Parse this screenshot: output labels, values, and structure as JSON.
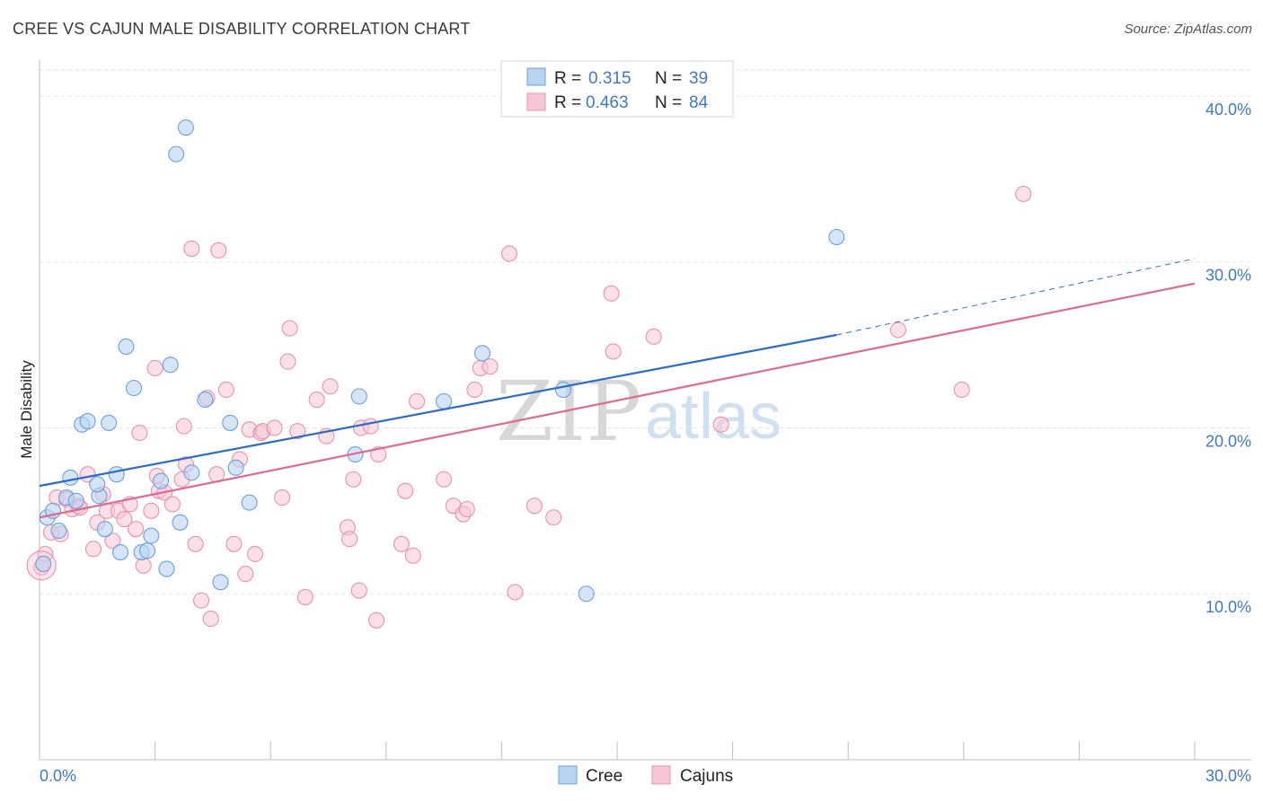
{
  "title": "CREE VS CAJUN MALE DISABILITY CORRELATION CHART",
  "source": "Source: ZipAtlas.com",
  "watermark": {
    "zip": "ZIP",
    "atlas": "atlas"
  },
  "legend": {
    "r_label": "R =",
    "n_label": "N =",
    "rows": [
      {
        "r": "0.315",
        "n": "39"
      },
      {
        "r": "0.463",
        "n": "84"
      }
    ]
  },
  "colors": {
    "cree_fill": "#b9d3f2",
    "cree_stroke": "#6b9fdc",
    "cree_line": "#2b6cc8",
    "cajun_fill": "#f7c6d6",
    "cajun_stroke": "#e891ad",
    "cajun_line": "#e0698f",
    "tick": "#3f78c8"
  },
  "chart_data": {
    "type": "scatter",
    "title": "CREE VS CAJUN MALE DISABILITY CORRELATION CHART",
    "xlabel": "",
    "ylabel": "Male Disability",
    "xlim": [
      0,
      30
    ],
    "ylim": [
      0,
      42
    ],
    "x_tick_labels": [
      "0.0%",
      "30.0%"
    ],
    "y_ticks": [
      10,
      20,
      30,
      40
    ],
    "y_tick_labels": [
      "10.0%",
      "20.0%",
      "30.0%",
      "40.0%"
    ],
    "grid": true,
    "legend_position": "top-center",
    "series": [
      {
        "name": "Cree",
        "r": 0.315,
        "n": 39,
        "trend": {
          "x0": 0,
          "y0": 16.5,
          "x1": 20.7,
          "y1": 25.6,
          "dashed_to_x": 30,
          "dashed_to_y": 30.2
        },
        "points": [
          [
            0.1,
            11.8
          ],
          [
            0.2,
            14.6
          ],
          [
            0.35,
            15.0
          ],
          [
            0.5,
            13.8
          ],
          [
            0.7,
            15.8
          ],
          [
            0.8,
            17.0
          ],
          [
            0.95,
            15.6
          ],
          [
            1.1,
            20.2
          ],
          [
            1.25,
            20.4
          ],
          [
            1.55,
            15.9
          ],
          [
            1.5,
            16.6
          ],
          [
            1.7,
            13.9
          ],
          [
            1.8,
            20.3
          ],
          [
            2.0,
            17.2
          ],
          [
            2.1,
            12.5
          ],
          [
            2.25,
            24.9
          ],
          [
            2.45,
            22.4
          ],
          [
            2.65,
            12.5
          ],
          [
            2.8,
            12.6
          ],
          [
            2.9,
            13.5
          ],
          [
            3.15,
            16.8
          ],
          [
            3.3,
            11.5
          ],
          [
            3.4,
            23.8
          ],
          [
            3.55,
            36.5
          ],
          [
            3.65,
            14.3
          ],
          [
            3.8,
            38.1
          ],
          [
            3.95,
            17.3
          ],
          [
            4.3,
            21.7
          ],
          [
            4.7,
            10.7
          ],
          [
            4.95,
            20.3
          ],
          [
            5.1,
            17.6
          ],
          [
            5.45,
            15.5
          ],
          [
            8.2,
            18.4
          ],
          [
            8.3,
            21.9
          ],
          [
            10.5,
            21.6
          ],
          [
            11.5,
            24.5
          ],
          [
            13.6,
            22.3
          ],
          [
            14.2,
            10.0
          ],
          [
            20.7,
            31.5
          ]
        ]
      },
      {
        "name": "Cajuns",
        "r": 0.463,
        "n": 84,
        "trend": {
          "x0": 0,
          "y0": 14.6,
          "x1": 30,
          "y1": 28.7
        },
        "points": [
          [
            0.05,
            11.6
          ],
          [
            0.15,
            12.4
          ],
          [
            0.3,
            13.7
          ],
          [
            0.45,
            15.8
          ],
          [
            0.55,
            13.6
          ],
          [
            0.7,
            15.7
          ],
          [
            0.85,
            15.1
          ],
          [
            1.0,
            15.3
          ],
          [
            1.05,
            15.2
          ],
          [
            1.25,
            17.2
          ],
          [
            1.4,
            12.7
          ],
          [
            1.5,
            14.3
          ],
          [
            1.65,
            16.0
          ],
          [
            1.75,
            15.0
          ],
          [
            1.9,
            13.2
          ],
          [
            2.05,
            15.0
          ],
          [
            2.2,
            14.5
          ],
          [
            2.35,
            15.4
          ],
          [
            2.5,
            13.9
          ],
          [
            2.6,
            19.7
          ],
          [
            2.7,
            11.7
          ],
          [
            2.9,
            15.0
          ],
          [
            3.0,
            23.6
          ],
          [
            3.05,
            17.1
          ],
          [
            3.1,
            16.2
          ],
          [
            3.25,
            16.1
          ],
          [
            3.45,
            15.4
          ],
          [
            3.7,
            16.9
          ],
          [
            3.75,
            20.1
          ],
          [
            3.8,
            17.8
          ],
          [
            3.95,
            30.8
          ],
          [
            4.05,
            13.0
          ],
          [
            4.2,
            9.6
          ],
          [
            4.35,
            21.8
          ],
          [
            4.45,
            8.5
          ],
          [
            4.6,
            17.2
          ],
          [
            4.65,
            30.7
          ],
          [
            4.85,
            22.3
          ],
          [
            5.05,
            13.0
          ],
          [
            5.2,
            18.1
          ],
          [
            5.35,
            11.2
          ],
          [
            5.45,
            19.9
          ],
          [
            5.6,
            12.4
          ],
          [
            5.75,
            19.7
          ],
          [
            5.8,
            19.8
          ],
          [
            6.1,
            20.0
          ],
          [
            6.3,
            15.8
          ],
          [
            6.45,
            24.0
          ],
          [
            6.5,
            26.0
          ],
          [
            6.7,
            19.8
          ],
          [
            6.9,
            9.8
          ],
          [
            7.2,
            21.7
          ],
          [
            7.45,
            19.5
          ],
          [
            7.55,
            22.5
          ],
          [
            8.0,
            14.0
          ],
          [
            8.05,
            13.3
          ],
          [
            8.15,
            16.9
          ],
          [
            8.3,
            10.2
          ],
          [
            8.35,
            20.0
          ],
          [
            8.6,
            20.1
          ],
          [
            8.75,
            8.4
          ],
          [
            8.8,
            18.4
          ],
          [
            9.4,
            13.0
          ],
          [
            9.5,
            16.2
          ],
          [
            9.7,
            12.3
          ],
          [
            9.8,
            21.6
          ],
          [
            10.5,
            16.9
          ],
          [
            10.75,
            15.3
          ],
          [
            11.0,
            14.8
          ],
          [
            11.1,
            15.1
          ],
          [
            11.3,
            22.3
          ],
          [
            11.45,
            23.6
          ],
          [
            11.7,
            23.7
          ],
          [
            12.2,
            30.5
          ],
          [
            12.35,
            10.1
          ],
          [
            12.85,
            15.3
          ],
          [
            13.35,
            14.6
          ],
          [
            14.85,
            28.1
          ],
          [
            14.9,
            24.6
          ],
          [
            15.95,
            25.5
          ],
          [
            17.7,
            20.2
          ],
          [
            22.3,
            25.9
          ],
          [
            23.95,
            22.3
          ],
          [
            25.55,
            34.1
          ]
        ]
      }
    ]
  },
  "bottom_legend": [
    {
      "label": "Cree"
    },
    {
      "label": "Cajuns"
    }
  ]
}
